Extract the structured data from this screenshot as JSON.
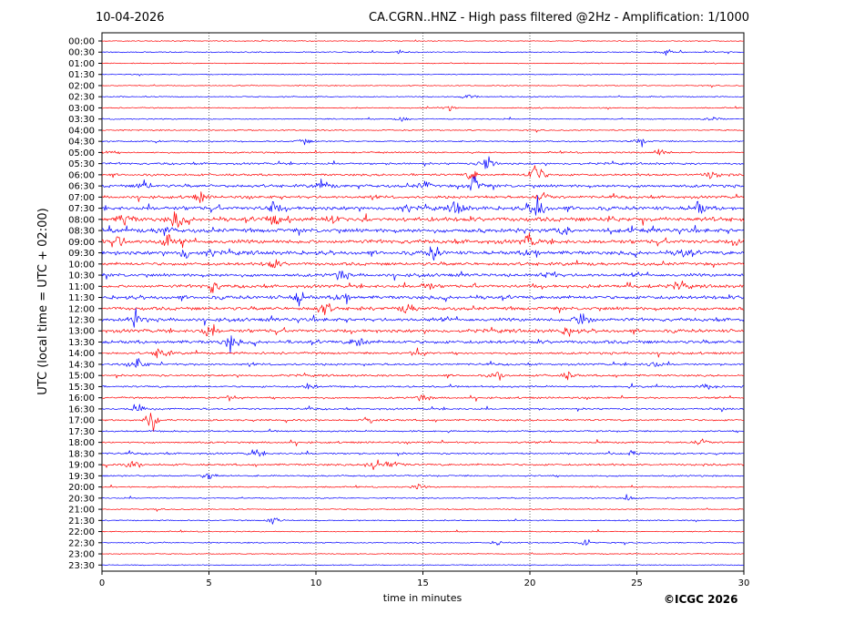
{
  "header": {
    "date": "10-04-2026",
    "title": "CA.CGRN..HNZ - High pass filtered @2Hz - Amplification: 1/1000"
  },
  "chart_data": {
    "type": "line",
    "title": "CA.CGRN..HNZ - High pass filtered @2Hz - Amplification: 1/1000",
    "xlabel": "time in minutes",
    "ylabel": "UTC (local time = UTC + 02:00)",
    "xlim": [
      0,
      30
    ],
    "x_ticks": [
      "0",
      "5",
      "10",
      "15",
      "20",
      "25",
      "30"
    ],
    "grid": "vertical dotted lines at x ticks",
    "trace_colors": [
      "#ff0000",
      "#0000ff"
    ],
    "row_labels": [
      "00:00",
      "00:30",
      "01:00",
      "01:30",
      "02:00",
      "02:30",
      "03:00",
      "03:30",
      "04:00",
      "04:30",
      "05:00",
      "05:30",
      "06:00",
      "06:30",
      "07:00",
      "07:30",
      "08:00",
      "08:30",
      "09:00",
      "09:30",
      "10:00",
      "10:30",
      "11:00",
      "11:30",
      "12:00",
      "12:30",
      "13:00",
      "13:30",
      "14:00",
      "14:30",
      "15:00",
      "15:30",
      "16:00",
      "16:30",
      "17:00",
      "17:30",
      "18:00",
      "18:30",
      "19:00",
      "19:30",
      "20:00",
      "20:30",
      "21:00",
      "21:30",
      "22:00",
      "22:30",
      "23:00",
      "23:30"
    ],
    "row_activity": [
      0.05,
      0.1,
      0.05,
      0.05,
      0.05,
      0.1,
      0.1,
      0.1,
      0.1,
      0.15,
      0.2,
      0.3,
      0.35,
      0.5,
      0.45,
      0.7,
      0.8,
      0.75,
      0.75,
      0.7,
      0.55,
      0.55,
      0.55,
      0.65,
      0.6,
      0.6,
      0.6,
      0.6,
      0.35,
      0.3,
      0.3,
      0.25,
      0.25,
      0.25,
      0.25,
      0.2,
      0.25,
      0.25,
      0.3,
      0.2,
      0.15,
      0.1,
      0.1,
      0.1,
      0.1,
      0.1,
      0.05,
      0.05
    ],
    "events": [
      {
        "row": 1,
        "t": 13.9,
        "amp": 0.2
      },
      {
        "row": 1,
        "t": 26.4,
        "amp": 0.25
      },
      {
        "row": 5,
        "t": 17.1,
        "amp": 0.3
      },
      {
        "row": 6,
        "t": 16.2,
        "amp": 0.35
      },
      {
        "row": 7,
        "t": 14.0,
        "amp": 0.3
      },
      {
        "row": 7,
        "t": 28.6,
        "amp": 0.25
      },
      {
        "row": 9,
        "t": 9.5,
        "amp": 0.3
      },
      {
        "row": 9,
        "t": 25.2,
        "amp": 0.4
      },
      {
        "row": 10,
        "t": 0.2,
        "amp": 0.3
      },
      {
        "row": 10,
        "t": 26.1,
        "amp": 0.45
      },
      {
        "row": 11,
        "t": 18.0,
        "amp": 1.2
      },
      {
        "row": 12,
        "t": 17.3,
        "amp": 0.6
      },
      {
        "row": 12,
        "t": 20.3,
        "amp": 1.6
      },
      {
        "row": 12,
        "t": 28.5,
        "amp": 0.5
      },
      {
        "row": 13,
        "t": 2.0,
        "amp": 0.6
      },
      {
        "row": 13,
        "t": 10.3,
        "amp": 0.6
      },
      {
        "row": 13,
        "t": 15.1,
        "amp": 0.5
      },
      {
        "row": 13,
        "t": 17.4,
        "amp": 1.1
      },
      {
        "row": 14,
        "t": 4.6,
        "amp": 0.5
      },
      {
        "row": 14,
        "t": 20.6,
        "amp": 0.5
      },
      {
        "row": 15,
        "t": 8.0,
        "amp": 0.7
      },
      {
        "row": 15,
        "t": 16.6,
        "amp": 0.8
      },
      {
        "row": 15,
        "t": 20.3,
        "amp": 1.8
      },
      {
        "row": 15,
        "t": 27.9,
        "amp": 0.8
      },
      {
        "row": 16,
        "t": 1.1,
        "amp": 0.7
      },
      {
        "row": 16,
        "t": 3.5,
        "amp": 0.9
      },
      {
        "row": 16,
        "t": 8.0,
        "amp": 0.7
      },
      {
        "row": 16,
        "t": 10.8,
        "amp": 0.6
      },
      {
        "row": 17,
        "t": 2.9,
        "amp": 0.6
      },
      {
        "row": 17,
        "t": 21.5,
        "amp": 0.8
      },
      {
        "row": 18,
        "t": 0.7,
        "amp": 0.8
      },
      {
        "row": 18,
        "t": 3.0,
        "amp": 0.7
      },
      {
        "row": 18,
        "t": 20.0,
        "amp": 0.8
      },
      {
        "row": 18,
        "t": 29.9,
        "amp": 0.7
      },
      {
        "row": 19,
        "t": 3.9,
        "amp": 0.7
      },
      {
        "row": 19,
        "t": 15.5,
        "amp": 0.8
      },
      {
        "row": 19,
        "t": 20.1,
        "amp": 0.7
      },
      {
        "row": 19,
        "t": 27.2,
        "amp": 0.6
      },
      {
        "row": 20,
        "t": 8.0,
        "amp": 0.5
      },
      {
        "row": 21,
        "t": 11.2,
        "amp": 0.6
      },
      {
        "row": 21,
        "t": 20.9,
        "amp": 0.6
      },
      {
        "row": 22,
        "t": 5.2,
        "amp": 0.7
      },
      {
        "row": 22,
        "t": 15.2,
        "amp": 0.5
      },
      {
        "row": 22,
        "t": 27.0,
        "amp": 0.5
      },
      {
        "row": 23,
        "t": 9.2,
        "amp": 0.8
      },
      {
        "row": 23,
        "t": 11.3,
        "amp": 0.9
      },
      {
        "row": 24,
        "t": 10.4,
        "amp": 0.8
      },
      {
        "row": 24,
        "t": 14.3,
        "amp": 0.6
      },
      {
        "row": 25,
        "t": 1.6,
        "amp": 0.8
      },
      {
        "row": 25,
        "t": 22.5,
        "amp": 1.4
      },
      {
        "row": 26,
        "t": 5.0,
        "amp": 0.9
      },
      {
        "row": 26,
        "t": 21.8,
        "amp": 0.6
      },
      {
        "row": 27,
        "t": 6.0,
        "amp": 0.9
      },
      {
        "row": 27,
        "t": 12.0,
        "amp": 0.8
      },
      {
        "row": 28,
        "t": 2.8,
        "amp": 1.0
      },
      {
        "row": 28,
        "t": 14.7,
        "amp": 0.7
      },
      {
        "row": 29,
        "t": 1.7,
        "amp": 0.7
      },
      {
        "row": 29,
        "t": 25.8,
        "amp": 0.5
      },
      {
        "row": 30,
        "t": 18.5,
        "amp": 0.5
      },
      {
        "row": 30,
        "t": 21.8,
        "amp": 0.4
      },
      {
        "row": 31,
        "t": 9.7,
        "amp": 0.4
      },
      {
        "row": 31,
        "t": 28.4,
        "amp": 0.5
      },
      {
        "row": 32,
        "t": 6.0,
        "amp": 0.5
      },
      {
        "row": 32,
        "t": 15.0,
        "amp": 0.4
      },
      {
        "row": 33,
        "t": 1.7,
        "amp": 0.4
      },
      {
        "row": 33,
        "t": 29.0,
        "amp": 0.4
      },
      {
        "row": 34,
        "t": 2.4,
        "amp": 1.1
      },
      {
        "row": 34,
        "t": 12.5,
        "amp": 0.4
      },
      {
        "row": 36,
        "t": 28.0,
        "amp": 0.4
      },
      {
        "row": 37,
        "t": 7.2,
        "amp": 0.4
      },
      {
        "row": 37,
        "t": 24.7,
        "amp": 0.4
      },
      {
        "row": 38,
        "t": 1.5,
        "amp": 0.5
      },
      {
        "row": 38,
        "t": 12.7,
        "amp": 1.0
      },
      {
        "row": 38,
        "t": 13.7,
        "amp": 0.6
      },
      {
        "row": 39,
        "t": 5.0,
        "amp": 0.4
      },
      {
        "row": 40,
        "t": 14.8,
        "amp": 0.3
      },
      {
        "row": 41,
        "t": 24.6,
        "amp": 0.4
      },
      {
        "row": 43,
        "t": 8.0,
        "amp": 0.4
      },
      {
        "row": 45,
        "t": 22.6,
        "amp": 0.5
      },
      {
        "row": 45,
        "t": 18.5,
        "amp": 0.2
      }
    ]
  },
  "footer": {
    "copyright": "©ICGC 2026"
  }
}
